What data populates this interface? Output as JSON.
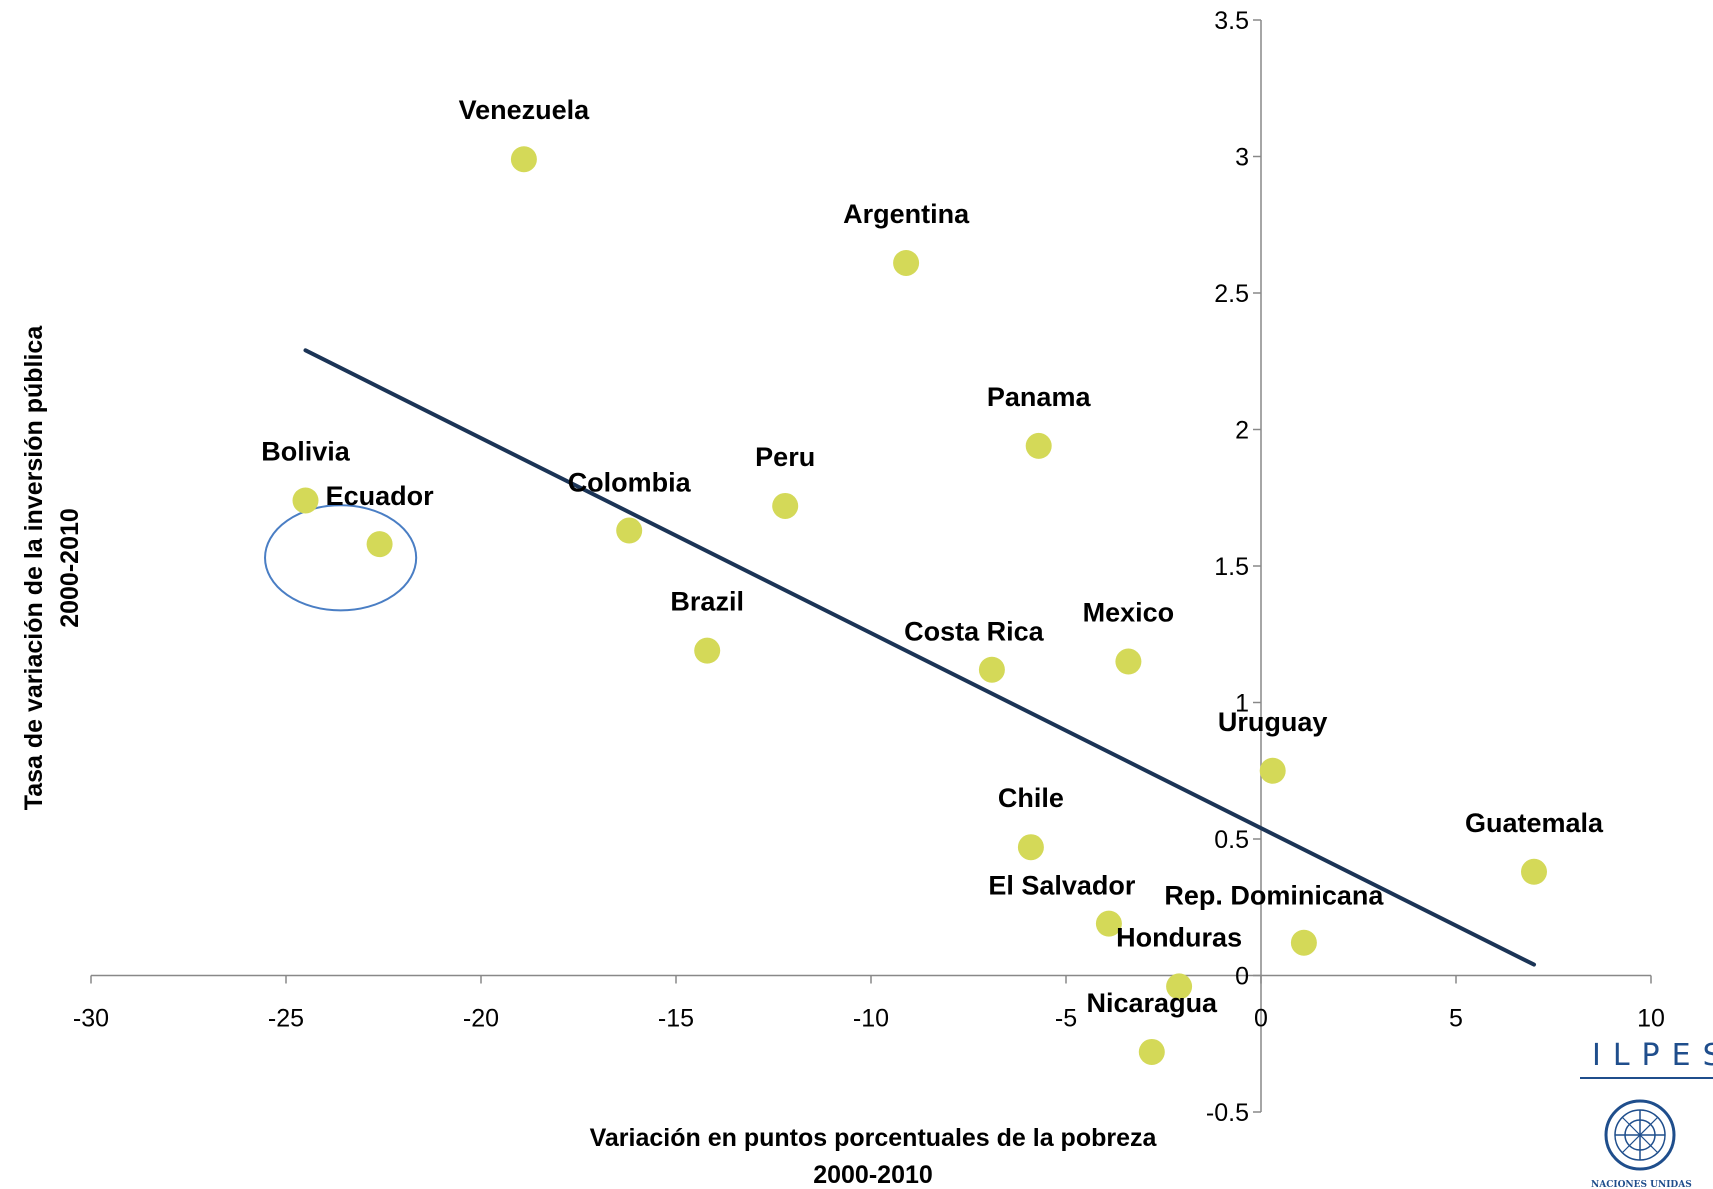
{
  "chart_data": {
    "type": "scatter",
    "title": "",
    "xlabel": "Variación en puntos porcentuales de la pobreza",
    "xlabel_line2": "2000-2010",
    "ylabel": "Tasa de variación de la inversión pública",
    "ylabel_line2": "2000-2010",
    "xlim": [
      -30,
      10
    ],
    "ylim": [
      -0.5,
      3.5
    ],
    "x_ticks": [
      "-30",
      "-25",
      "-20",
      "-15",
      "-10",
      "-5",
      "0",
      "5",
      "10"
    ],
    "x_tick_values": [
      -30,
      -25,
      -20,
      -15,
      -10,
      -5,
      0,
      5,
      10
    ],
    "y_ticks": [
      "-0.5",
      "0",
      "0.5",
      "1",
      "1.5",
      "2",
      "2.5",
      "3",
      "3.5"
    ],
    "y_tick_values": [
      -0.5,
      0,
      0.5,
      1,
      1.5,
      2,
      2.5,
      3,
      3.5
    ],
    "grid": false,
    "marker_color": "#d4d958",
    "trendline_color": "#1b3456",
    "highlight_ellipse_color": "#4a7ec4",
    "points": [
      {
        "label": "Venezuela",
        "x": -18.9,
        "y": 2.99
      },
      {
        "label": "Argentina",
        "x": -9.1,
        "y": 2.61
      },
      {
        "label": "Panama",
        "x": -5.7,
        "y": 1.94
      },
      {
        "label": "Bolivia",
        "x": -24.5,
        "y": 1.74
      },
      {
        "label": "Ecuador",
        "x": -22.6,
        "y": 1.58
      },
      {
        "label": "Colombia",
        "x": -16.2,
        "y": 1.63
      },
      {
        "label": "Peru",
        "x": -12.2,
        "y": 1.72
      },
      {
        "label": "Brazil",
        "x": -14.2,
        "y": 1.19
      },
      {
        "label": "Costa Rica",
        "x": -6.9,
        "y": 1.12
      },
      {
        "label": "Mexico",
        "x": -3.4,
        "y": 1.15
      },
      {
        "label": "Uruguay",
        "x": 0.3,
        "y": 0.75
      },
      {
        "label": "Chile",
        "x": -5.9,
        "y": 0.47
      },
      {
        "label": "Guatemala",
        "x": 7.0,
        "y": 0.38
      },
      {
        "label": "El Salvador",
        "x": -3.9,
        "y": 0.19
      },
      {
        "label": "Rep. Dominicana",
        "x": 1.1,
        "y": 0.12
      },
      {
        "label": "Honduras",
        "x": -2.1,
        "y": -0.04
      },
      {
        "label": "Nicaragua",
        "x": -2.8,
        "y": -0.28
      }
    ],
    "trendline": {
      "x": [
        -24.5,
        7.0
      ],
      "y": [
        2.29,
        0.04
      ]
    },
    "highlight_ellipse": {
      "cx": -23.6,
      "cy": 1.83,
      "rx": 5.1,
      "ry": 0.35,
      "members": [
        "Bolivia",
        "Ecuador"
      ]
    }
  },
  "logo": {
    "ilpes_text": "ILPES",
    "un_text": "NACIONES UNIDAS"
  }
}
